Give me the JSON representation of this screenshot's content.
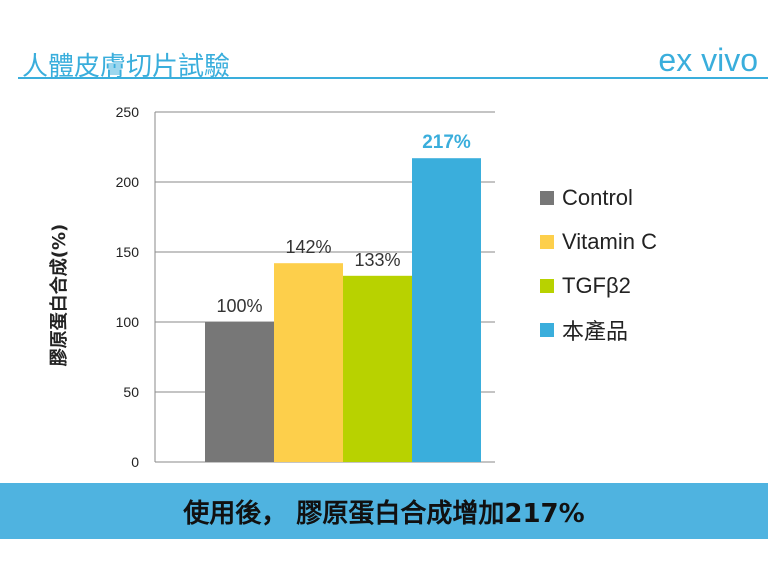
{
  "header": {
    "title": "人體皮膚切片試驗",
    "subtitle": "ex vivo"
  },
  "banner": {
    "text": "使用後， 膠原蛋白合成增加217%"
  },
  "colors": {
    "accent": "#3aaedc",
    "control": "#777777",
    "vitamin_c": "#fdcf4b",
    "tgf": "#b8d200",
    "product": "#3aaedc"
  },
  "chart_data": {
    "type": "bar",
    "ylabel": "膠原蛋白合成(%)",
    "xlabel": "",
    "ylim": [
      0,
      250
    ],
    "yticks": [
      0,
      50,
      100,
      150,
      200,
      250
    ],
    "grid": true,
    "legend_position": "right",
    "series": [
      {
        "name": "Control",
        "value": 100,
        "label": "100%",
        "color": "#777777"
      },
      {
        "name": "Vitamin C",
        "value": 142,
        "label": "142%",
        "color": "#fdcf4b"
      },
      {
        "name": "TGFβ2",
        "value": 133,
        "label": "133%",
        "color": "#b8d200"
      },
      {
        "name": "本產品",
        "value": 217,
        "label": "217%",
        "color": "#3aaedc"
      }
    ]
  }
}
